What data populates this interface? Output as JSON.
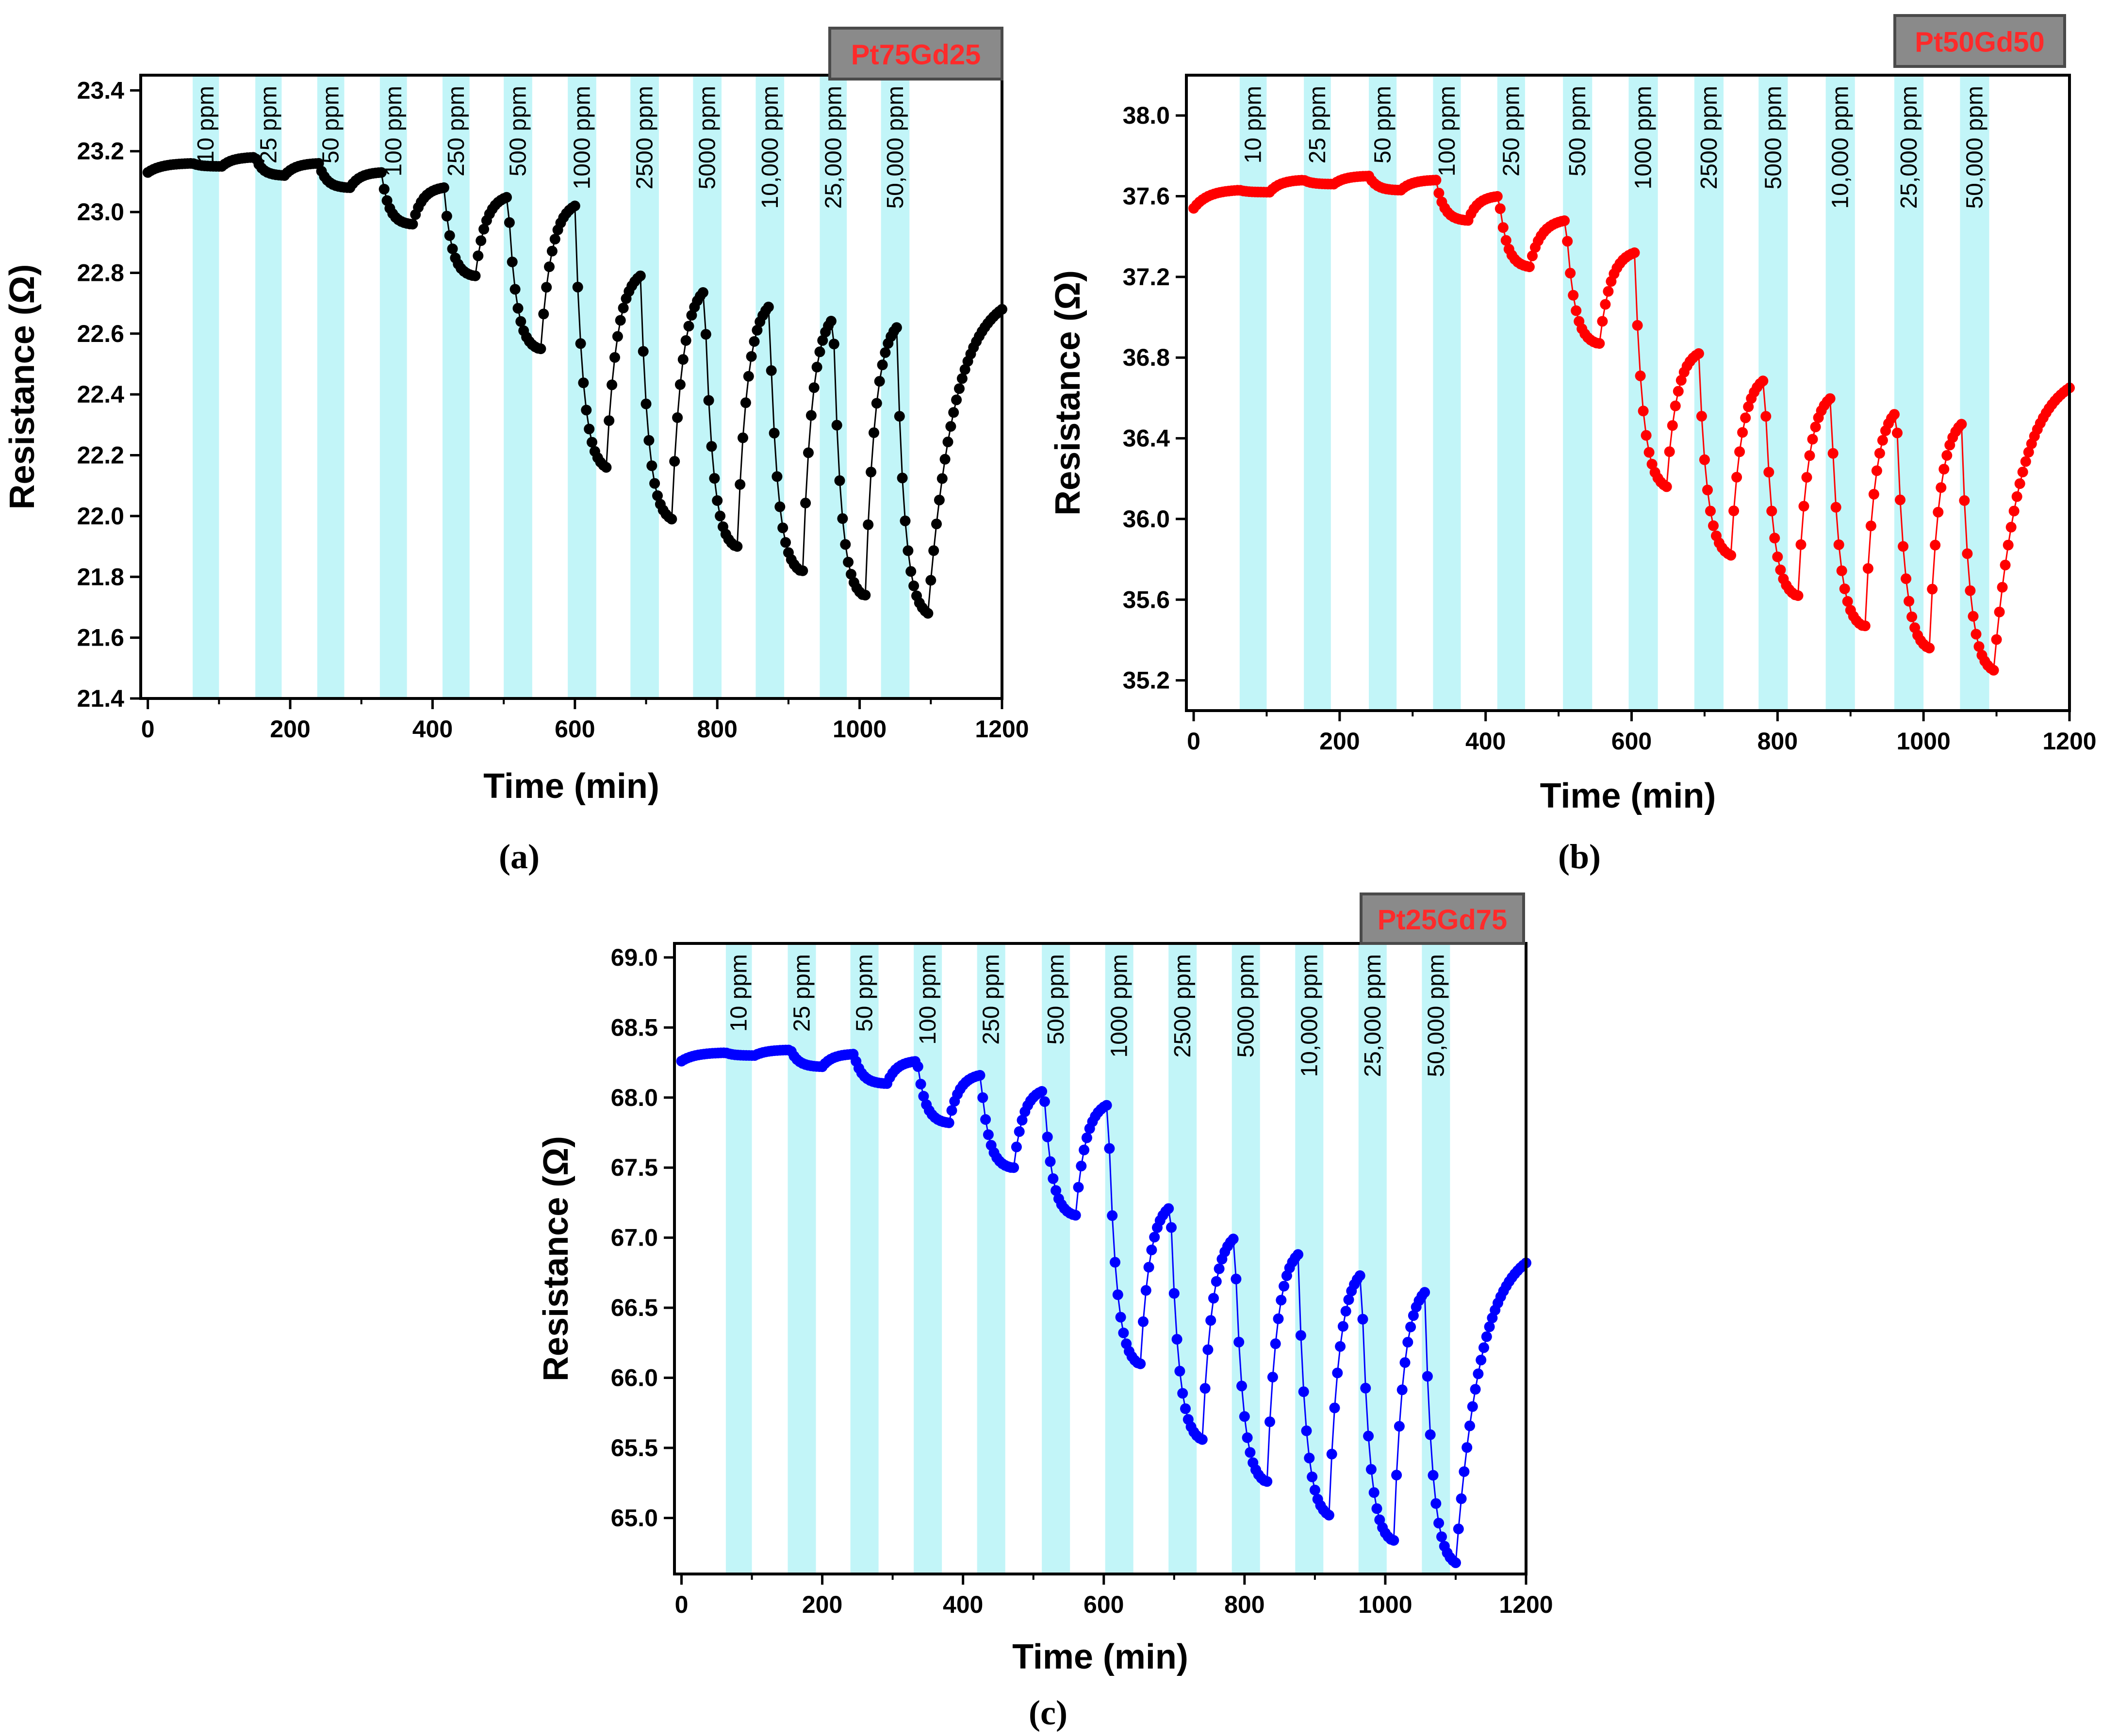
{
  "chart_data": [
    {
      "type": "scatter",
      "panel_label": "a",
      "caption": "(a)",
      "sample_label": "Pt75Gd25",
      "color": "#000000",
      "xlabel": "Time (min)",
      "ylabel": "Resistance (Ω)",
      "xlim": [
        -10,
        1200
      ],
      "ylim": [
        21.4,
        23.45
      ],
      "xticks": [
        0,
        200,
        400,
        600,
        800,
        1000,
        1200
      ],
      "yticks": [
        21.4,
        21.6,
        21.8,
        22.0,
        22.2,
        22.4,
        22.6,
        22.8,
        23.0,
        23.2,
        23.4
      ],
      "ytick_labels": [
        "21.4",
        "21.6",
        "21.8",
        "22.0",
        "22.2",
        "22.4",
        "22.6",
        "22.8",
        "23.0",
        "23.2",
        "23.4"
      ],
      "start_value": 23.13,
      "exposure_windows": [
        [
          63,
          100
        ],
        [
          151,
          188
        ],
        [
          238,
          276
        ],
        [
          326,
          364
        ],
        [
          414,
          452
        ],
        [
          500,
          540
        ],
        [
          590,
          630
        ],
        [
          678,
          718
        ],
        [
          766,
          806
        ],
        [
          854,
          894
        ],
        [
          944,
          982
        ],
        [
          1030,
          1070
        ]
      ],
      "exposure_labels": [
        "10 ppm",
        "25 ppm",
        "50 ppm",
        "100 ppm",
        "250 ppm",
        "500 ppm",
        "1000 ppm",
        "2500 ppm",
        "5000 ppm",
        "10,000 ppm",
        "25,000 ppm",
        "50,000 ppm"
      ],
      "cycles": [
        {
          "name": "10 ppm",
          "start": 63,
          "pre_peak": 23.16,
          "minimum": 23.15
        },
        {
          "name": "25 ppm",
          "start": 151,
          "pre_peak": 23.18,
          "minimum": 23.12
        },
        {
          "name": "50 ppm",
          "start": 240,
          "pre_peak": 23.16,
          "minimum": 23.08
        },
        {
          "name": "100 ppm",
          "start": 328,
          "pre_peak": 23.13,
          "minimum": 22.96
        },
        {
          "name": "250 ppm",
          "start": 416,
          "pre_peak": 23.08,
          "minimum": 22.79
        },
        {
          "name": "500 ppm",
          "start": 506,
          "pre_peak": 23.05,
          "minimum": 22.55
        },
        {
          "name": "1000 ppm",
          "start": 600,
          "pre_peak": 23.02,
          "minimum": 22.16
        },
        {
          "name": "2500 ppm",
          "start": 692,
          "pre_peak": 22.79,
          "minimum": 21.99
        },
        {
          "name": "5000 ppm",
          "start": 782,
          "pre_peak": 22.74,
          "minimum": 21.9
        },
        {
          "name": "10,000 ppm",
          "start": 873,
          "pre_peak": 22.69,
          "minimum": 21.82
        },
        {
          "name": "25,000 ppm",
          "start": 963,
          "pre_peak": 22.65,
          "minimum": 21.74
        },
        {
          "name": "50,000 ppm",
          "start": 1052,
          "pre_peak": 22.62,
          "minimum": 21.68
        }
      ],
      "end_value": 22.68
    },
    {
      "type": "scatter",
      "panel_label": "b",
      "caption": "(b)",
      "sample_label": "Pt50Gd50",
      "color": "#ff0000",
      "xlabel": "Time (min)",
      "ylabel": "Resistance (Ω)",
      "xlim": [
        -10,
        1200
      ],
      "ylim": [
        35.05,
        38.2
      ],
      "xticks": [
        0,
        200,
        400,
        600,
        800,
        1000,
        1200
      ],
      "yticks": [
        35.2,
        35.6,
        36.0,
        36.4,
        36.8,
        37.2,
        37.6,
        38.0
      ],
      "ytick_labels": [
        "35.2",
        "35.6",
        "36.0",
        "36.4",
        "36.8",
        "37.2",
        "37.6",
        "38.0"
      ],
      "start_value": 37.54,
      "exposure_windows": [
        [
          63,
          100
        ],
        [
          151,
          188
        ],
        [
          240,
          278
        ],
        [
          328,
          366
        ],
        [
          416,
          454
        ],
        [
          506,
          546
        ],
        [
          596,
          636
        ],
        [
          686,
          726
        ],
        [
          774,
          814
        ],
        [
          866,
          906
        ],
        [
          960,
          1000
        ],
        [
          1050,
          1090
        ]
      ],
      "exposure_labels": [
        "10 ppm",
        "25 ppm",
        "50 ppm",
        "100 ppm",
        "250 ppm",
        "500 ppm",
        "1000 ppm",
        "2500 ppm",
        "5000 ppm",
        "10,000 ppm",
        "25,000 ppm",
        "50,000 ppm"
      ],
      "cycles": [
        {
          "name": "10 ppm",
          "start": 63,
          "pre_peak": 37.63,
          "minimum": 37.62
        },
        {
          "name": "25 ppm",
          "start": 151,
          "pre_peak": 37.68,
          "minimum": 37.66
        },
        {
          "name": "50 ppm",
          "start": 240,
          "pre_peak": 37.7,
          "minimum": 37.63
        },
        {
          "name": "100 ppm",
          "start": 332,
          "pre_peak": 37.68,
          "minimum": 37.48
        },
        {
          "name": "250 ppm",
          "start": 418,
          "pre_peak": 37.6,
          "minimum": 37.25
        },
        {
          "name": "500 ppm",
          "start": 510,
          "pre_peak": 37.48,
          "minimum": 36.87
        },
        {
          "name": "1000 ppm",
          "start": 604,
          "pre_peak": 37.32,
          "minimum": 36.16
        },
        {
          "name": "2500 ppm",
          "start": 692,
          "pre_peak": 36.82,
          "minimum": 35.82
        },
        {
          "name": "5000 ppm",
          "start": 782,
          "pre_peak": 36.69,
          "minimum": 35.62
        },
        {
          "name": "10,000 ppm",
          "start": 873,
          "pre_peak": 36.6,
          "minimum": 35.47
        },
        {
          "name": "25,000 ppm",
          "start": 963,
          "pre_peak": 36.53,
          "minimum": 35.36
        },
        {
          "name": "50,000 ppm",
          "start": 1052,
          "pre_peak": 36.47,
          "minimum": 35.25
        }
      ],
      "end_value": 36.65
    },
    {
      "type": "scatter",
      "panel_label": "c",
      "caption": "(c)",
      "sample_label": "Pt25Gd75",
      "color": "#0000ff",
      "xlabel": "Time (min)",
      "ylabel": "Resistance (Ω)",
      "xlim": [
        -10,
        1200
      ],
      "ylim": [
        64.6,
        69.1
      ],
      "xticks": [
        0,
        200,
        400,
        600,
        800,
        1000,
        1200
      ],
      "yticks": [
        65.0,
        65.5,
        66.0,
        66.5,
        67.0,
        67.5,
        68.0,
        68.5,
        69.0
      ],
      "ytick_labels": [
        "65.0",
        "65.5",
        "66.0",
        "66.5",
        "67.0",
        "67.5",
        "68.0",
        "68.5",
        "69.0"
      ],
      "start_value": 68.26,
      "exposure_windows": [
        [
          63,
          100
        ],
        [
          151,
          191
        ],
        [
          240,
          280
        ],
        [
          330,
          370
        ],
        [
          420,
          460
        ],
        [
          512,
          552
        ],
        [
          602,
          642
        ],
        [
          692,
          732
        ],
        [
          782,
          822
        ],
        [
          872,
          912
        ],
        [
          962,
          1002
        ],
        [
          1052,
          1092
        ]
      ],
      "exposure_labels": [
        "10 ppm",
        "25 ppm",
        "50 ppm",
        "100 ppm",
        "250 ppm",
        "500 ppm",
        "1000 ppm",
        "2500 ppm",
        "5000 ppm",
        "10,000 ppm",
        "25,000 ppm",
        "50,000 ppm"
      ],
      "cycles": [
        {
          "name": "10 ppm",
          "start": 63,
          "pre_peak": 68.32,
          "minimum": 68.3
        },
        {
          "name": "25 ppm",
          "start": 155,
          "pre_peak": 68.34,
          "minimum": 68.22
        },
        {
          "name": "50 ppm",
          "start": 245,
          "pre_peak": 68.31,
          "minimum": 68.1
        },
        {
          "name": "100 ppm",
          "start": 335,
          "pre_peak": 68.26,
          "minimum": 67.82
        },
        {
          "name": "250 ppm",
          "start": 425,
          "pre_peak": 68.16,
          "minimum": 67.5
        },
        {
          "name": "500 ppm",
          "start": 515,
          "pre_peak": 68.05,
          "minimum": 67.16
        },
        {
          "name": "1000 ppm",
          "start": 606,
          "pre_peak": 67.95,
          "minimum": 66.1
        },
        {
          "name": "2500 ppm",
          "start": 695,
          "pre_peak": 67.22,
          "minimum": 65.56
        },
        {
          "name": "5000 ppm",
          "start": 786,
          "pre_peak": 67.0,
          "minimum": 65.26
        },
        {
          "name": "10,000 ppm",
          "start": 876,
          "pre_peak": 66.88,
          "minimum": 65.02
        },
        {
          "name": "25,000 ppm",
          "start": 966,
          "pre_peak": 66.74,
          "minimum": 64.84
        },
        {
          "name": "50,000 ppm",
          "start": 1056,
          "pre_peak": 66.61,
          "minimum": 64.68
        }
      ],
      "end_value": 66.82
    }
  ]
}
